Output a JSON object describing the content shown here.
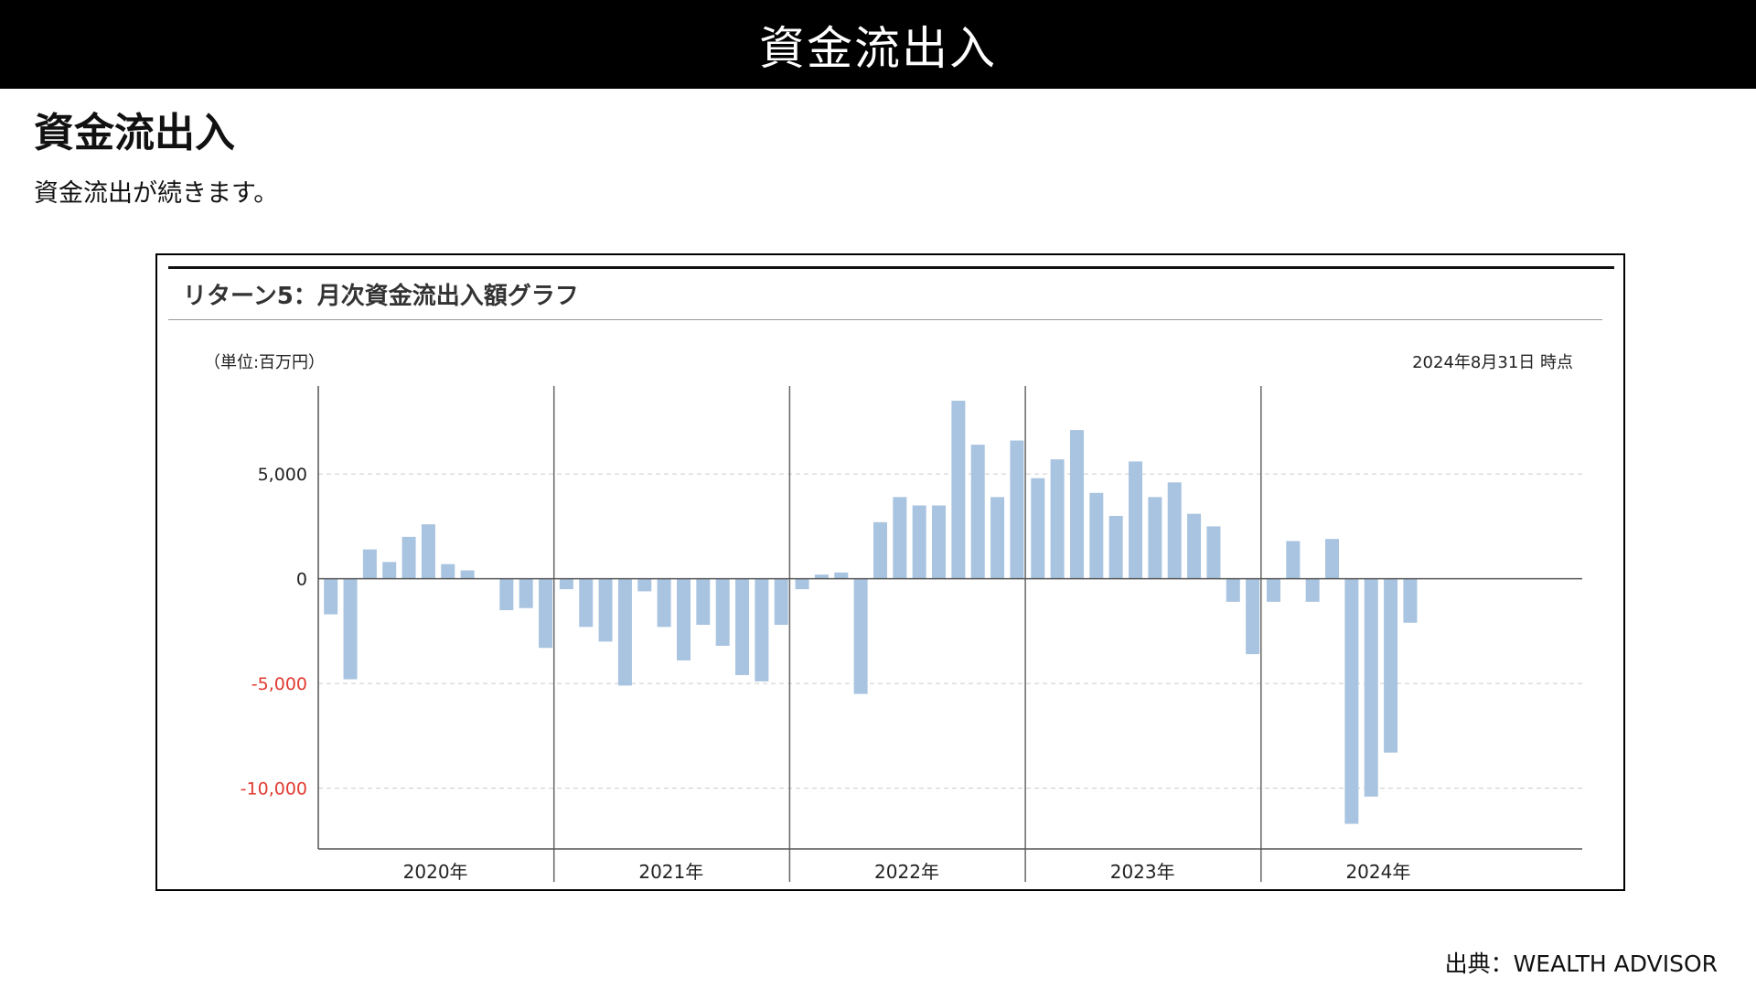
{
  "header": {
    "title": "資金流出入"
  },
  "section": {
    "title": "資金流出入",
    "subtitle": "資金流出が続きます。"
  },
  "source": "出典：WEALTH ADVISOR",
  "chart_data": {
    "type": "bar",
    "title": "リターン5：月次資金流出入額グラフ",
    "unit_label": "（単位:百万円）",
    "as_of": "2024年8月31日 時点",
    "bar_color": "#a9c4e0",
    "negative_tick_color": "#e03a2f",
    "ylim": [
      -12900,
      9200
    ],
    "yticks": [
      {
        "value": 5000,
        "label": "5,000"
      },
      {
        "value": 0,
        "label": "0"
      },
      {
        "value": -5000,
        "label": "-5,000"
      },
      {
        "value": -10000,
        "label": "-10,000"
      }
    ],
    "grid": true,
    "years": [
      {
        "label": "2020年",
        "values": [
          -1700,
          -4800,
          1400,
          800,
          2000,
          2600,
          700,
          400,
          0,
          -1500,
          -1400,
          -3300
        ]
      },
      {
        "label": "2021年",
        "values": [
          -500,
          -2300,
          -3000,
          -5100,
          -600,
          -2300,
          -3900,
          -2200,
          -3200,
          -4600,
          -4900,
          -2200
        ]
      },
      {
        "label": "2022年",
        "values": [
          -500,
          200,
          300,
          -5500,
          2700,
          3900,
          3500,
          3500,
          8500,
          6400,
          3900,
          6600
        ]
      },
      {
        "label": "2023年",
        "values": [
          4800,
          5700,
          7100,
          4100,
          3000,
          5600,
          3900,
          4600,
          3100,
          2500,
          -1100,
          -3600
        ]
      },
      {
        "label": "2024年",
        "values": [
          -1100,
          1800,
          -1100,
          1900,
          -11700,
          -10400,
          -8300,
          -2100
        ]
      }
    ]
  }
}
